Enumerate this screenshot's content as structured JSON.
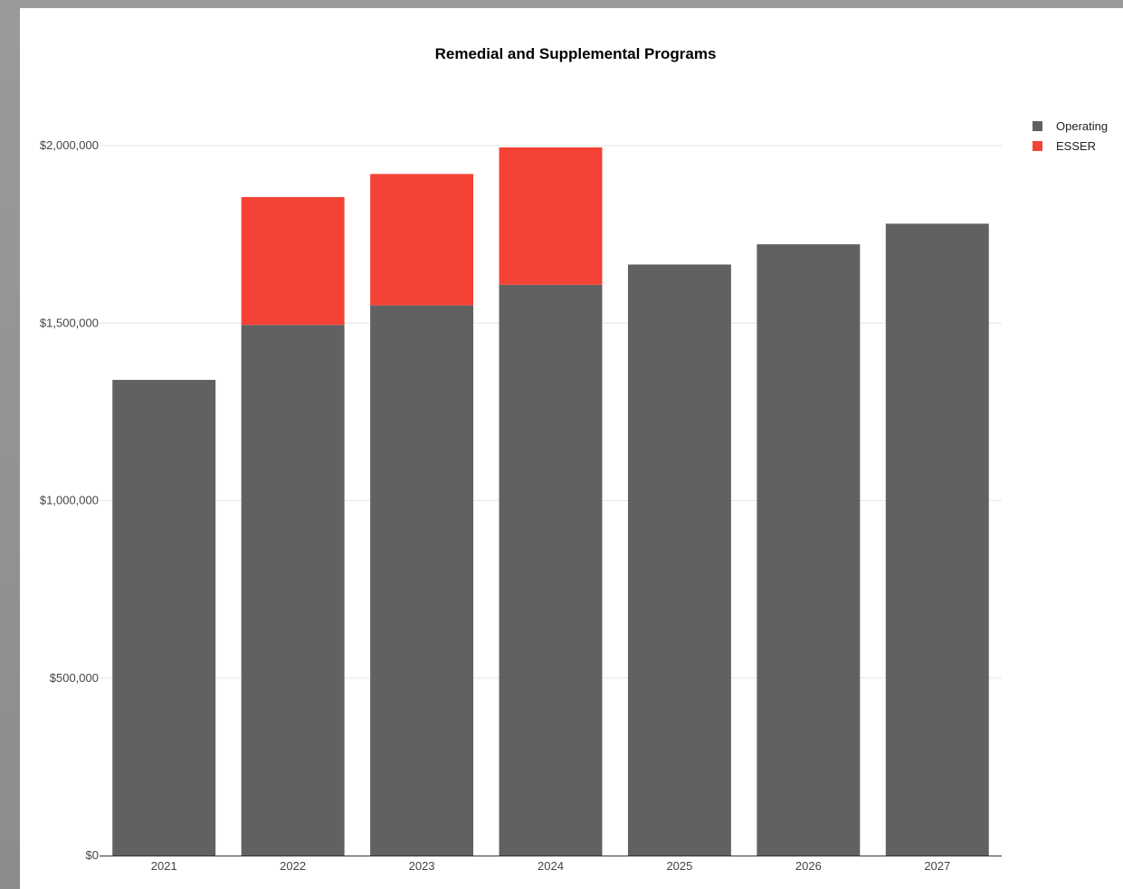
{
  "chart_data": {
    "type": "bar",
    "stacked": true,
    "title": "Remedial and Supplemental Programs",
    "xlabel": "",
    "ylabel": "",
    "categories": [
      "2021",
      "2022",
      "2023",
      "2024",
      "2025",
      "2026",
      "2027"
    ],
    "series": [
      {
        "name": "Operating",
        "color": "#616161",
        "values": [
          1340000,
          1495000,
          1550000,
          1608000,
          1665000,
          1722000,
          1780000
        ]
      },
      {
        "name": "ESSER",
        "color": "#f44336",
        "values": [
          0,
          360000,
          370000,
          387000,
          0,
          0,
          0
        ]
      }
    ],
    "ylim": [
      0,
      2000000
    ],
    "yticks": [
      0,
      500000,
      1000000,
      1500000,
      2000000
    ],
    "ytick_labels": [
      "$0",
      "$500,000",
      "$1,000,000",
      "$1,500,000",
      "$2,000,000"
    ],
    "grid": true,
    "legend_position": "top-right"
  }
}
